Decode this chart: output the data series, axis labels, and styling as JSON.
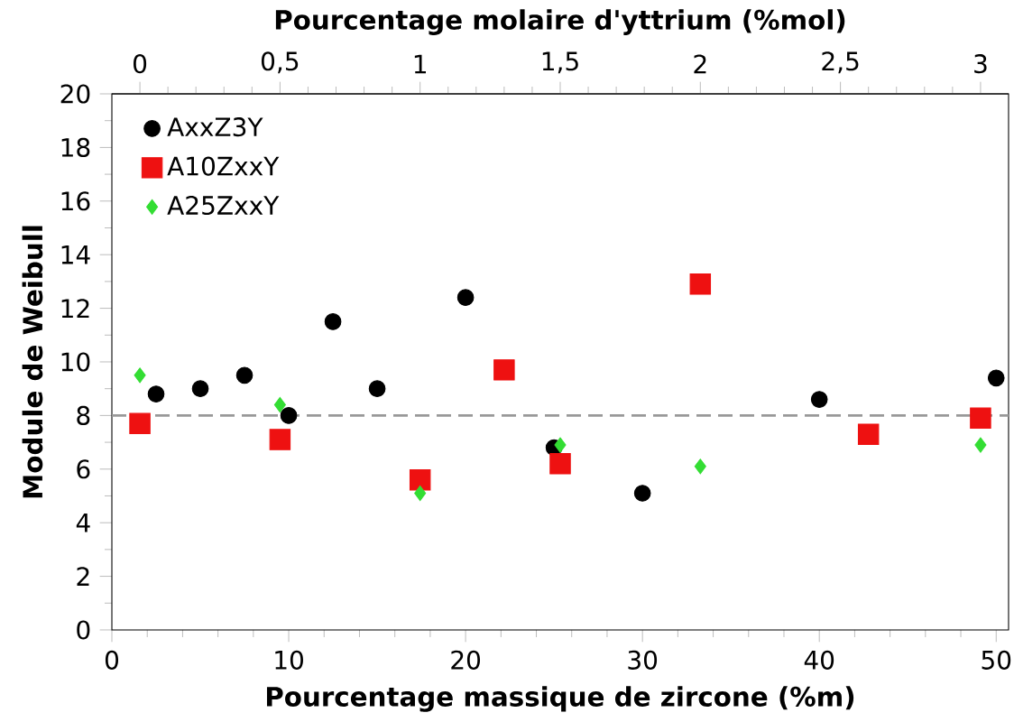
{
  "chart_data": {
    "type": "scatter",
    "xlabel": "Pourcentage massique de zircone (%m)",
    "x2label": "Pourcentage molaire d'yttrium (%mol)",
    "ylabel": "Module de Weibull",
    "xlim": [
      0,
      50.7
    ],
    "xticks": [
      0,
      10,
      20,
      30,
      40,
      50
    ],
    "x2lim": [
      -0.1,
      3.1
    ],
    "x2ticks": [
      0,
      {
        "value": 0.5,
        "label": "0,5"
      },
      1,
      {
        "value": 1.5,
        "label": "1,5"
      },
      2,
      {
        "value": 2.5,
        "label": "2,5"
      },
      3
    ],
    "ylim": [
      0,
      20
    ],
    "yticks": [
      0,
      2,
      4,
      6,
      8,
      10,
      12,
      14,
      16,
      18,
      20
    ],
    "legend": "top left",
    "ref_lines": [
      {
        "axis": "y",
        "value": 8,
        "color": "#999999",
        "line_style": "dashed"
      }
    ],
    "series": [
      {
        "name": "AxxZ3Y",
        "color": "#000000",
        "marker": "circle",
        "x": [
          2.5,
          5,
          7.5,
          10,
          12.5,
          15,
          20,
          25,
          30,
          40,
          50
        ],
        "values": [
          8.8,
          9.0,
          9.5,
          8.0,
          11.5,
          9.0,
          12.4,
          6.8,
          5.1,
          8.6,
          9.4
        ]
      },
      {
        "name": "A10ZxxY",
        "color": "#ee1111",
        "marker": "square",
        "axis": "x2",
        "x": [
          0,
          0.5,
          1,
          1.3,
          1.5,
          2,
          2.6,
          3
        ],
        "values": [
          7.7,
          7.1,
          5.6,
          9.7,
          6.2,
          12.9,
          7.3,
          7.9
        ]
      },
      {
        "name": "A25ZxxY",
        "color": "#33dd33",
        "marker": "diamond",
        "axis": "x2",
        "x": [
          0,
          0.5,
          1,
          1.5,
          2,
          3
        ],
        "values": [
          9.5,
          8.4,
          5.1,
          6.9,
          6.1,
          6.9
        ]
      }
    ]
  }
}
